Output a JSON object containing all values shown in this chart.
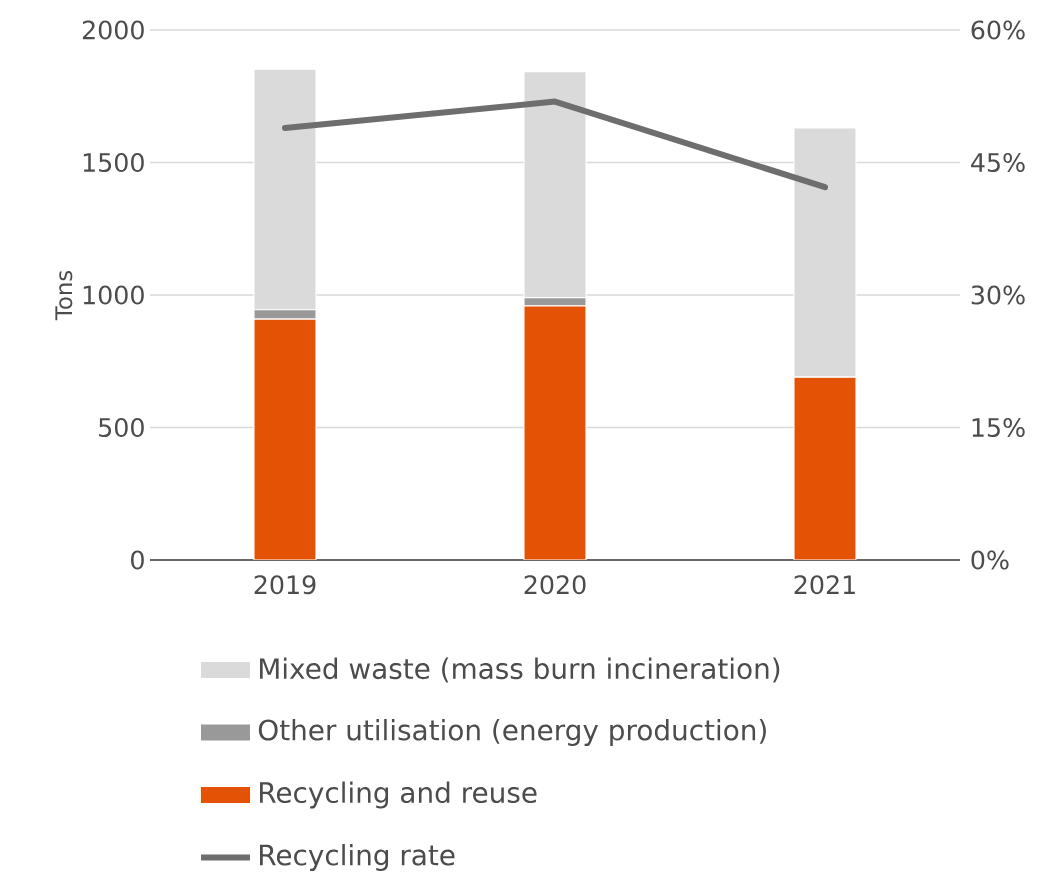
{
  "chart_data": {
    "type": "bar",
    "stacked": true,
    "ylabel": "Tons",
    "categories": [
      "2019",
      "2020",
      "2021"
    ],
    "series": [
      {
        "name": "Recycling and reuse",
        "color": "#e35205",
        "values": [
          909,
          959,
          690
        ]
      },
      {
        "name": "Other utilisation (energy production)",
        "color": "#999999",
        "values": [
          35,
          31,
          0
        ]
      },
      {
        "name": "Mixed waste (mass burn incineration)",
        "color": "#dadada",
        "values": [
          908,
          853,
          940
        ]
      },
      {
        "name": "Recycling rate",
        "type": "line",
        "axis": "y2",
        "color": "#6e6e6e",
        "values": [
          48.9,
          51.9,
          42.2
        ]
      }
    ],
    "ylim": [
      0,
      2000
    ],
    "yticks": [
      0,
      500,
      1000,
      1500,
      2000
    ],
    "y2lim": [
      0,
      60
    ],
    "y2ticks": [
      {
        "value": 0,
        "label": "0%"
      },
      {
        "value": 15,
        "label": "15%"
      },
      {
        "value": 30,
        "label": "30%"
      },
      {
        "value": 45,
        "label": "45%"
      },
      {
        "value": 60,
        "label": "60%"
      }
    ],
    "grid": "y",
    "legend": "bottom"
  }
}
